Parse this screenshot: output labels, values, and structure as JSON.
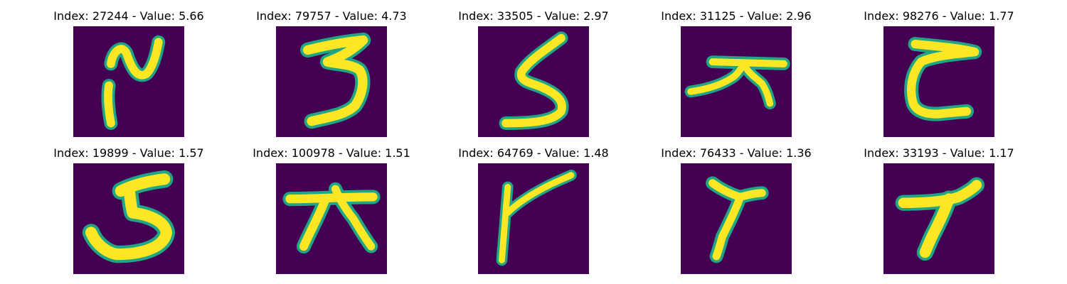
{
  "figure": {
    "background_color": "#440154",
    "stroke_color": "#fde725",
    "edge_color": "#21a685",
    "cells": [
      {
        "title": "Index: 27244 - Value: 5.66"
      },
      {
        "title": "Index: 79757 - Value: 4.73"
      },
      {
        "title": "Index: 33505 - Value: 2.97"
      },
      {
        "title": "Index: 31125 - Value: 2.96"
      },
      {
        "title": "Index: 98276 - Value: 1.77"
      },
      {
        "title": "Index: 19899 - Value: 1.57"
      },
      {
        "title": "Index: 100978 - Value: 1.51"
      },
      {
        "title": "Index: 64769 - Value: 1.48"
      },
      {
        "title": "Index: 76433 - Value: 1.36"
      },
      {
        "title": "Index: 33193 - Value: 1.17"
      }
    ]
  }
}
